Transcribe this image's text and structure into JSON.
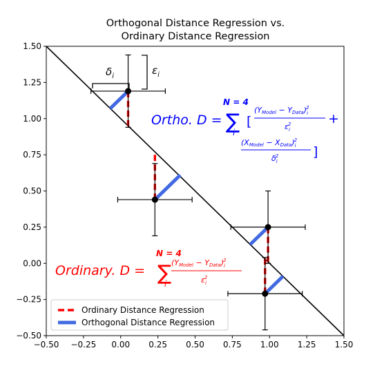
{
  "chart_data": {
    "type": "scatter",
    "title_lines": [
      "Orthogonal Distance Regression vs.",
      "Ordinary Distance Regression"
    ],
    "xlim": [
      -0.5,
      1.5
    ],
    "ylim": [
      -0.5,
      1.5
    ],
    "x_ticks": [
      -0.5,
      -0.25,
      0.0,
      0.25,
      0.5,
      0.75,
      1.0,
      1.25,
      1.5
    ],
    "y_ticks": [
      -0.5,
      -0.25,
      0.0,
      0.25,
      0.5,
      0.75,
      1.0,
      1.25,
      1.5
    ],
    "x_tick_labels": [
      "−0.50",
      "−0.25",
      "0.00",
      "0.25",
      "0.50",
      "0.75",
      "1.00",
      "1.25",
      "1.50"
    ],
    "y_tick_labels": [
      "−0.50",
      "−0.25",
      "0.00",
      "0.25",
      "0.50",
      "0.75",
      "1.00",
      "1.25",
      "1.50"
    ],
    "model_line": {
      "x": [
        -0.5,
        1.5
      ],
      "y": [
        1.5,
        -0.5
      ],
      "color": "#000000"
    },
    "points": [
      {
        "x": 0.05,
        "y": 1.19,
        "x_err": 0.25,
        "y_err": 0.25
      },
      {
        "x": 0.23,
        "y": 0.44,
        "x_err": 0.25,
        "y_err": 0.25
      },
      {
        "x": 0.99,
        "y": 0.25,
        "x_err": 0.25,
        "y_err": 0.25
      },
      {
        "x": 0.97,
        "y": -0.21,
        "x_err": 0.25,
        "y_err": 0.25
      }
    ],
    "legend_placement": "lower-left",
    "series": [
      {
        "name": "Ordinary Distance Regression",
        "color": "#ff0000",
        "style": "dashed",
        "segments": [
          {
            "x1": 0.05,
            "y1": 1.19,
            "x2": 0.05,
            "y2": 0.95
          },
          {
            "x1": 0.23,
            "y1": 0.44,
            "x2": 0.23,
            "y2": 0.77
          },
          {
            "x1": 0.99,
            "y1": 0.25,
            "x2": 0.99,
            "y2": 0.01
          },
          {
            "x1": 0.97,
            "y1": -0.21,
            "x2": 0.97,
            "y2": 0.03
          }
        ]
      },
      {
        "name": "Orthogonal Distance Regression",
        "color": "#4169e1",
        "style": "solid",
        "segments": [
          {
            "x1": 0.05,
            "y1": 1.19,
            "x2": -0.07,
            "y2": 1.07
          },
          {
            "x1": 0.23,
            "y1": 0.44,
            "x2": 0.4,
            "y2": 0.61
          },
          {
            "x1": 0.99,
            "y1": 0.25,
            "x2": 0.87,
            "y2": 0.13
          },
          {
            "x1": 0.97,
            "y1": -0.21,
            "x2": 1.09,
            "y2": -0.09
          }
        ]
      }
    ],
    "annotations": {
      "delta_label": "δ",
      "delta_sub": "i",
      "eps_label": "ε",
      "eps_sub": "i",
      "ortho": {
        "lhs": "Ortho. D =",
        "sum_top": "N = 4",
        "sum_sym": "∑",
        "sum_bot": "i",
        "term1_num": "(Y",
        "term1_num_sub1": "Model",
        "term1_num_mid": " − Y",
        "term1_num_sub2": "Data",
        "term1_num_end": ")",
        "term1_den": "ε",
        "bracket_open": "[",
        "plus": "+",
        "bracket_close": "]",
        "term2_num": "(X",
        "term2_num_sub1": "Model",
        "term2_num_mid": " − X",
        "term2_num_sub2": "Data",
        "term2_num_end": ")",
        "term2_den": "δ",
        "sup2": "2",
        "sub_i": "i",
        "color": "#0000ff"
      },
      "ordinary": {
        "lhs": "Ordinary. D =",
        "sum_top": "N = 4",
        "sum_sym": "∑",
        "sum_bot": "i",
        "num": "(Y",
        "num_sub1": "Model",
        "num_mid": " − Y",
        "num_sub2": "Data",
        "num_end": ")",
        "den": "ε",
        "sup2": "2",
        "sub_i": "i",
        "color": "#ff0000"
      }
    }
  }
}
